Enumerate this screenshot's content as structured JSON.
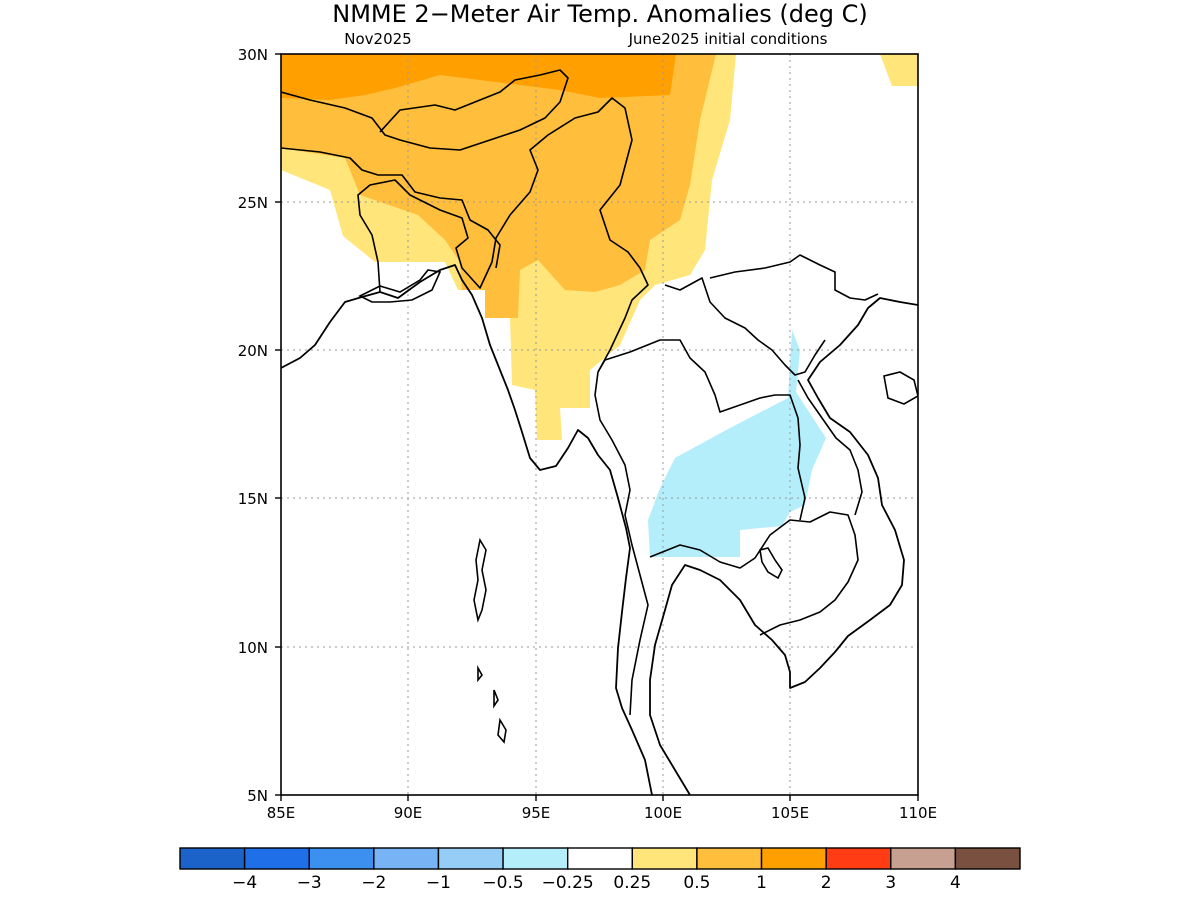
{
  "title": "NMME 2−Meter Air Temp. Anomalies (deg C)",
  "subtitle_left": "Nov2025",
  "subtitle_right": "June2025 initial conditions",
  "x_ticks": [
    "85E",
    "90E",
    "95E",
    "100E",
    "105E",
    "110E"
  ],
  "y_ticks": [
    "30N",
    "25N",
    "20N",
    "15N",
    "10N",
    "5N"
  ],
  "legend": {
    "colors": [
      "#1b63c9",
      "#1f6fe8",
      "#3c90f0",
      "#78b4f5",
      "#96cdf7",
      "#b4eefa",
      "#ffffff",
      "#ffe57a",
      "#ffbe3c",
      "#ffa000",
      "#ff3c14",
      "#c8a092",
      "#7a5040"
    ],
    "labels": [
      "−4",
      "−3",
      "−2",
      "−1",
      "−0.5",
      "−0.25",
      "0.25",
      "0.5",
      "1",
      "2",
      "3",
      "4"
    ]
  },
  "colors": {
    "anom_0_5_1": "#ffbe3c",
    "anom_1_2": "#ffa000",
    "anom_0_25_0_5": "#ffe57a",
    "anom_neg_0_25_0_5": "#b4eefa"
  }
}
